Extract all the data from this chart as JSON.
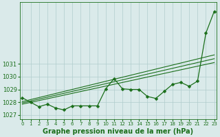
{
  "x": [
    0,
    1,
    2,
    3,
    4,
    5,
    6,
    7,
    8,
    9,
    10,
    11,
    12,
    13,
    14,
    15,
    16,
    17,
    18,
    19,
    20,
    21,
    22,
    23
  ],
  "y_main": [
    1028.35,
    1028.0,
    1027.65,
    1027.85,
    1027.55,
    1027.4,
    1027.72,
    1027.72,
    1027.72,
    1027.72,
    1029.05,
    1029.85,
    1029.05,
    1029.0,
    1029.0,
    1028.45,
    1028.3,
    1028.85,
    1029.4,
    1029.55,
    1029.25,
    1029.65,
    1033.4,
    1035.1
  ],
  "trend_lines": [
    {
      "x": [
        0,
        23
      ],
      "y": [
        1028.05,
        1031.7
      ]
    },
    {
      "x": [
        0,
        23
      ],
      "y": [
        1027.95,
        1031.4
      ]
    },
    {
      "x": [
        0,
        23
      ],
      "y": [
        1027.85,
        1031.1
      ]
    }
  ],
  "bg_color": "#daeaea",
  "grid_color": "#b0cccc",
  "line_color": "#1a6e1a",
  "xlabel": "Graphe pression niveau de la mer (hPa)",
  "ylim": [
    1026.7,
    1035.8
  ],
  "xlim": [
    -0.3,
    23.3
  ],
  "yticks": [
    1027,
    1028,
    1029,
    1030,
    1031
  ],
  "xticks": [
    0,
    1,
    2,
    3,
    4,
    5,
    6,
    7,
    8,
    9,
    10,
    11,
    12,
    13,
    14,
    15,
    16,
    17,
    18,
    19,
    20,
    21,
    22,
    23
  ],
  "markersize": 2.5,
  "linewidth": 0.9,
  "trend_linewidth": 0.8,
  "xlabel_fontsize": 7,
  "ytick_fontsize": 6,
  "xtick_fontsize": 5
}
